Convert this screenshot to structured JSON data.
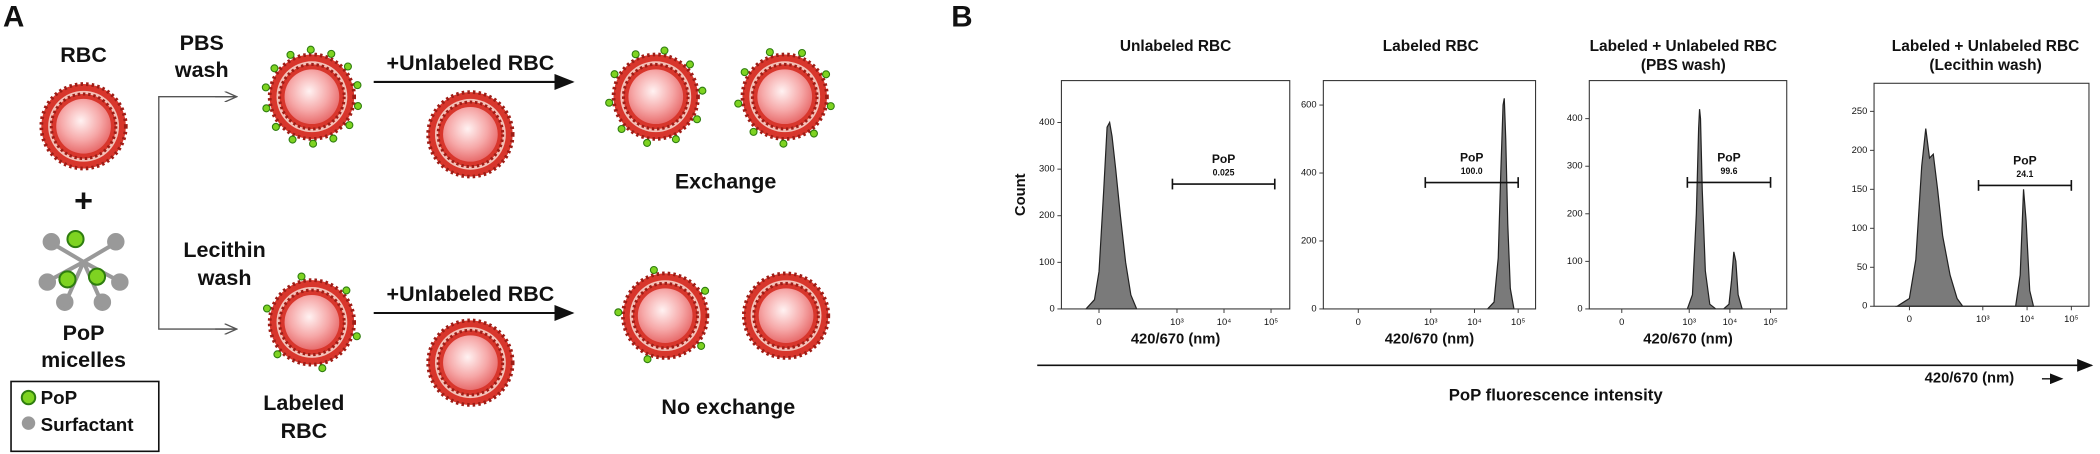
{
  "panel_a": {
    "label": "A",
    "rbc": "RBC",
    "plus": "+",
    "micelles": [
      "PoP",
      "micelles"
    ],
    "legend": [
      "PoP",
      "Surfactant"
    ],
    "pbs_wash": [
      "PBS",
      "wash"
    ],
    "lecithin_wash": [
      "Lecithin",
      "wash"
    ],
    "add_top": "+Unlabeled RBC",
    "add_bottom": "+Unlabeled RBC",
    "labeled": [
      "Labeled",
      "RBC"
    ],
    "exchange": "Exchange",
    "no_exchange": "No exchange"
  },
  "panel_b": {
    "label": "B",
    "shared_axis_label": "PoP fluorescence intensity"
  },
  "chart_data": [
    {
      "type": "area",
      "title": [
        "Unlabeled RBC"
      ],
      "ylabel": "Count",
      "xlabel": "420/670 (nm)",
      "xlim": [
        -135,
        250000
      ],
      "ylim": [
        0,
        490
      ],
      "xticks": [
        0,
        {
          "value": 1000,
          "label": "10³"
        },
        {
          "value": 10000,
          "label": "10⁴"
        },
        {
          "value": 100000,
          "label": "10⁵"
        }
      ],
      "yticks": [
        0,
        100,
        200,
        300,
        400
      ],
      "x": [
        -30,
        -10,
        0,
        10,
        18,
        24,
        30,
        40,
        55,
        75,
        100,
        135
      ],
      "y": [
        0,
        20,
        80,
        250,
        390,
        400,
        370,
        300,
        200,
        100,
        30,
        0
      ],
      "color": "#7a7a7a",
      "gate": {
        "name": "PoP",
        "value": 0.025,
        "range": [
          800,
          120000
        ],
        "level": 268
      }
    },
    {
      "type": "area",
      "title": [
        "Labeled RBC"
      ],
      "xlabel": "420/670 (nm)",
      "xlim": [
        -135,
        250000
      ],
      "ylim": [
        0,
        672
      ],
      "xticks": [
        0,
        {
          "value": 1000,
          "label": "10³"
        },
        {
          "value": 10000,
          "label": "10⁴"
        },
        {
          "value": 100000,
          "label": "10⁵"
        }
      ],
      "yticks": [
        0,
        200,
        400,
        600
      ],
      "x": [
        20000,
        28000,
        35000,
        40000,
        45000,
        48000,
        52000,
        58000,
        66000,
        80000
      ],
      "y": [
        0,
        20,
        150,
        400,
        600,
        620,
        500,
        250,
        60,
        0
      ],
      "color": "#7a7a7a",
      "gate": {
        "name": "PoP",
        "value": {
          "value": 100,
          "label": "100.0"
        },
        "range": [
          750,
          100000
        ],
        "level": 372
      }
    },
    {
      "type": "area",
      "title": [
        "Labeled + Unlabeled RBC",
        "(PBS wash)"
      ],
      "xlabel": "420/670 (nm)",
      "xlim": [
        -135,
        250000
      ],
      "ylim": [
        0,
        480
      ],
      "xticks": [
        0,
        {
          "value": 1000,
          "label": "10³"
        },
        {
          "value": 10000,
          "label": "10⁴"
        },
        {
          "value": 100000,
          "label": "10⁵"
        }
      ],
      "yticks": [
        0,
        100,
        200,
        300,
        400
      ],
      "x": [
        900,
        1200,
        1500,
        1700,
        1800,
        1900,
        2100,
        2500,
        3200,
        4500,
        7000,
        9500,
        11000,
        12500,
        14000,
        16000,
        20000
      ],
      "y": [
        0,
        30,
        200,
        380,
        420,
        400,
        250,
        80,
        10,
        0,
        0,
        10,
        60,
        120,
        100,
        30,
        0
      ],
      "color": "#7a7a7a",
      "gate": {
        "name": "PoP",
        "value": 99.6,
        "range": [
          900,
          100000
        ],
        "level": 266
      }
    },
    {
      "type": "area",
      "title": [
        "Labeled + Unlabeled RBC",
        "(Lecithin wash)"
      ],
      "xlabel": "420/670 (nm)",
      "xlim": [
        -135,
        250000
      ],
      "ylim": [
        0,
        286
      ],
      "xticks": [
        0,
        {
          "value": 1000,
          "label": "10³"
        },
        {
          "value": 10000,
          "label": "10⁴"
        },
        {
          "value": 100000,
          "label": "10⁵"
        }
      ],
      "yticks": [
        0,
        50,
        100,
        150,
        200,
        250
      ],
      "x": [
        -30,
        0,
        15,
        30,
        42,
        55,
        70,
        90,
        120,
        180,
        260,
        350,
        5500,
        7000,
        8300,
        9500,
        11500,
        14000
      ],
      "y": [
        0,
        10,
        60,
        180,
        228,
        190,
        195,
        150,
        90,
        40,
        10,
        0,
        0,
        40,
        150,
        110,
        20,
        0
      ],
      "color": "#7a7a7a",
      "gate": {
        "name": "PoP",
        "value": 24.1,
        "range": [
          800,
          100000
        ],
        "level": 155
      }
    }
  ]
}
